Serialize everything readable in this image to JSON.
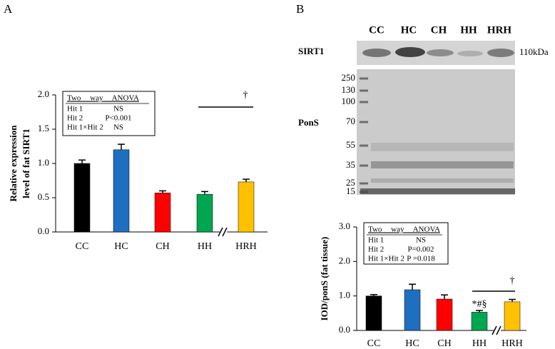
{
  "panels": [
    "A",
    "B"
  ],
  "blot": {
    "lanes": [
      "CC",
      "HC",
      "CH",
      "HH",
      "HRH"
    ],
    "protein": "SIRT1",
    "size": "110kDa",
    "stain": "PonS",
    "markers": [
      "250",
      "130",
      "100",
      "70",
      "55",
      "35",
      "25",
      "15"
    ]
  },
  "chart_data": [
    {
      "type": "bar",
      "ylabel": [
        "Relative expression",
        "level of fat SIRT1"
      ],
      "categories": [
        "CC",
        "HC",
        "CH",
        "HH",
        "HRH"
      ],
      "values": [
        1.0,
        1.2,
        0.57,
        0.55,
        0.73
      ],
      "errors": [
        0.05,
        0.08,
        0.03,
        0.04,
        0.04
      ],
      "colors": [
        "#000000",
        "#1f6fc0",
        "#ff0000",
        "#00a650",
        "#ffc000"
      ],
      "ylim": [
        0,
        2
      ],
      "yticks": [
        {
          "value": 0,
          "label": "0.0"
        },
        {
          "value": 0.5,
          "label": "0.5"
        },
        {
          "value": 1,
          "label": "1.0"
        },
        {
          "value": 1.5,
          "label": "1.5"
        },
        {
          "value": 2,
          "label": "2.0"
        }
      ],
      "annotations": [
        "†"
      ],
      "anova": {
        "header": "Two way ANOVA",
        "rows": [
          [
            "Hit 1",
            "NS"
          ],
          [
            "Hit 2",
            "P<0.001"
          ],
          [
            "Hit 1×Hit 2",
            "NS"
          ]
        ]
      }
    },
    {
      "type": "bar",
      "ylabel": "IOD/ponS (fat tissue)",
      "categories": [
        "CC",
        "HC",
        "CH",
        "HH",
        "HRH"
      ],
      "values": [
        1.0,
        1.18,
        0.91,
        0.53,
        0.83
      ],
      "errors": [
        0.04,
        0.16,
        0.12,
        0.05,
        0.07
      ],
      "colors": [
        "#000000",
        "#1f6fc0",
        "#ff0000",
        "#00a650",
        "#ffc000"
      ],
      "ylim": [
        0,
        3
      ],
      "yticks": [
        {
          "value": 0,
          "label": "0.0"
        },
        {
          "value": 1,
          "label": "1.0"
        },
        {
          "value": 2,
          "label": "2.0"
        },
        {
          "value": 3,
          "label": "3.0"
        }
      ],
      "annotations": [
        "*#§",
        "†"
      ],
      "anova": {
        "header": "Two way ANOVA",
        "rows": [
          [
            "Hit 1",
            "NS"
          ],
          [
            "Hit 2",
            "P=0.002"
          ],
          [
            "Hit 1×Hit 2",
            "P =0.018"
          ]
        ]
      }
    }
  ]
}
